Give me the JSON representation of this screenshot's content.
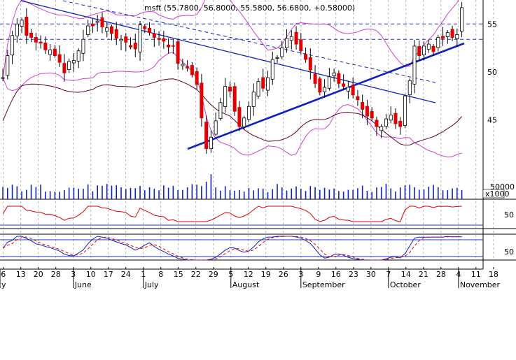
{
  "chart_data": {
    "type": "candlestick",
    "title": "msft (55.7800, 56.8000, 55.5800, 56.6800, +0.58000)",
    "symbol": "msft",
    "quote": {
      "open": 55.78,
      "high": 56.8,
      "low": 55.58,
      "close": 56.68,
      "change": 0.58
    },
    "price_axis": {
      "ticks": [
        "55",
        "50",
        "45"
      ],
      "tick_values": [
        55,
        50,
        45
      ],
      "ylim": [
        39.5,
        57.5
      ]
    },
    "volume_axis": {
      "ticks": [
        "50000"
      ],
      "unit": "x1000"
    },
    "rsi_axis": {
      "ticks": [
        "50"
      ]
    },
    "stoch_axis": {
      "ticks": [
        "50"
      ]
    },
    "x_ticks": [
      "6",
      "13",
      "20",
      "28",
      "3",
      "10",
      "17",
      "24",
      "1",
      "8",
      "15",
      "22",
      "29",
      "5",
      "12",
      "19",
      "26",
      "3",
      "9",
      "16",
      "23",
      "30",
      "7",
      "14",
      "21",
      "28",
      "4",
      "11",
      "18"
    ],
    "months": [
      {
        "label": "y",
        "at": 0
      },
      {
        "label": "June",
        "at": 4
      },
      {
        "label": "July",
        "at": 8
      },
      {
        "label": "August",
        "at": 13
      },
      {
        "label": "September",
        "at": 17
      },
      {
        "label": "October",
        "at": 22
      },
      {
        "label": "November",
        "at": 26
      }
    ],
    "series": [
      {
        "name": "close",
        "values": [
          49.4,
          51.7,
          53.8,
          55.0,
          55.4,
          53.8,
          53.6,
          53.1,
          53.0,
          52.3,
          52.3,
          51.7,
          51.0,
          49.9,
          51.1,
          51.2,
          52.2,
          53.4,
          54.8,
          54.8,
          55.3,
          54.7,
          54.6,
          54.0,
          53.5,
          53.4,
          53.1,
          52.6,
          52.4,
          54.9,
          54.5,
          54.1,
          53.6,
          53.4,
          53.2,
          52.6,
          52.7,
          50.9,
          50.8,
          50.4,
          49.7,
          48.7,
          45.2,
          42.0,
          43.2,
          44.9,
          46.8,
          48.5,
          48.0,
          45.9,
          44.3,
          45.2,
          46.4,
          47.9,
          49.0,
          48.3,
          49.4,
          51.3,
          51.5,
          52.5,
          53.5,
          53.7,
          52.9,
          52.2,
          51.3,
          50.2,
          48.8,
          47.9,
          48.4,
          49.5,
          49.9,
          48.8,
          48.5,
          48.4,
          47.6,
          47.1,
          46.1,
          45.4,
          45.2,
          44.3,
          44.3,
          45.1,
          45.5,
          44.6,
          44.3,
          47.5,
          49.1,
          52.7,
          51.7,
          52.7,
          52.9,
          52.1,
          53.6,
          53.5,
          54.1,
          53.6,
          53.9,
          56.7
        ]
      }
    ],
    "xlim": [
      -0.6,
      101.5
    ]
  }
}
